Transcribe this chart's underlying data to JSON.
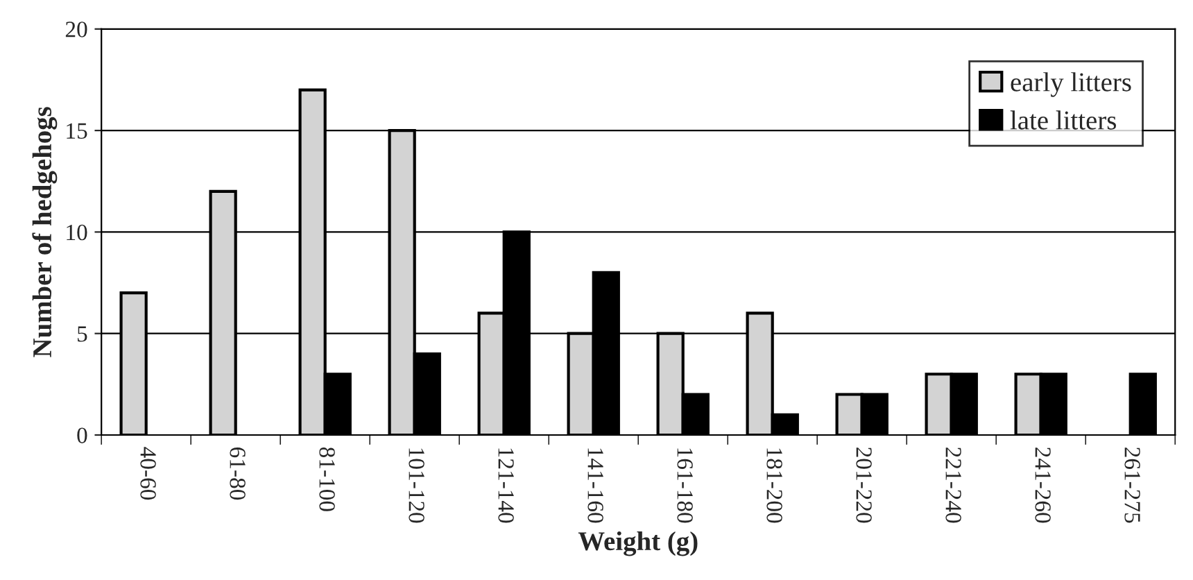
{
  "chart_data": {
    "type": "bar",
    "xlabel": "Weight (g)",
    "ylabel": "Number of hedgehogs",
    "categories": [
      "40-60",
      "61-80",
      "81-100",
      "101-120",
      "121-140",
      "141-160",
      "161-180",
      "181-200",
      "201-220",
      "221-240",
      "241-260",
      "261-275"
    ],
    "series": [
      {
        "name": "early litters",
        "color": "#d3d3d3",
        "values": [
          7,
          12,
          17,
          15,
          6,
          5,
          5,
          6,
          2,
          3,
          3,
          null
        ]
      },
      {
        "name": "late litters",
        "color": "#000000",
        "values": [
          null,
          null,
          3,
          4,
          10,
          8,
          2,
          1,
          2,
          3,
          3,
          3
        ]
      }
    ],
    "ylim": [
      0,
      20
    ],
    "yticks": [
      0,
      5,
      10,
      15,
      20
    ],
    "grid": "y",
    "legend": "top right"
  }
}
